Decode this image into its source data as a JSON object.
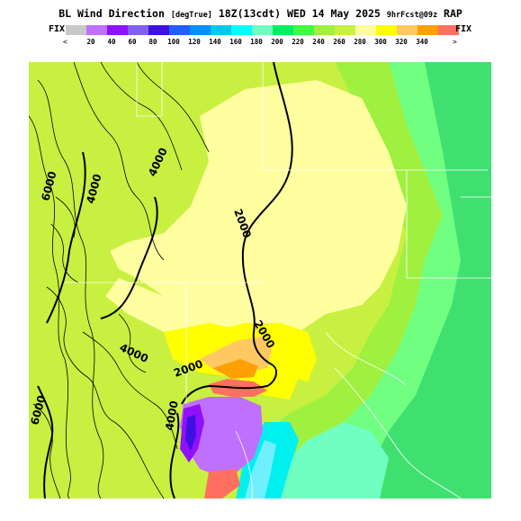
{
  "title": {
    "main": "BL Wind Direction",
    "units": "[degTrue]",
    "time": "18Z(13cdt) WED 14 May 2025",
    "forecast": "9hrFcst@09z",
    "model": "RAP"
  },
  "legend": {
    "fix_left": "FIX",
    "fix_right": "FIX",
    "arrow_left": "<",
    "arrow_right": ">",
    "colors": [
      "#c8c8c8",
      "#c070ff",
      "#9010ff",
      "#8060f0",
      "#4010e0",
      "#2060ff",
      "#0090ff",
      "#00c8f0",
      "#00ffff",
      "#70ffc0",
      "#00f060",
      "#40ff40",
      "#a0f040",
      "#c8f040",
      "#ffffa0",
      "#ffff00",
      "#ffc860",
      "#ffa000",
      "#ff7060"
    ],
    "ticks": [
      "20",
      "40",
      "60",
      "80",
      "100",
      "120",
      "140",
      "160",
      "180",
      "200",
      "220",
      "240",
      "260",
      "280",
      "300",
      "320",
      "340"
    ]
  },
  "map": {
    "contour_labels": [
      "6000",
      "4000",
      "4000",
      "2000",
      "2000",
      "4000",
      "2000",
      "6000",
      "4000"
    ]
  }
}
